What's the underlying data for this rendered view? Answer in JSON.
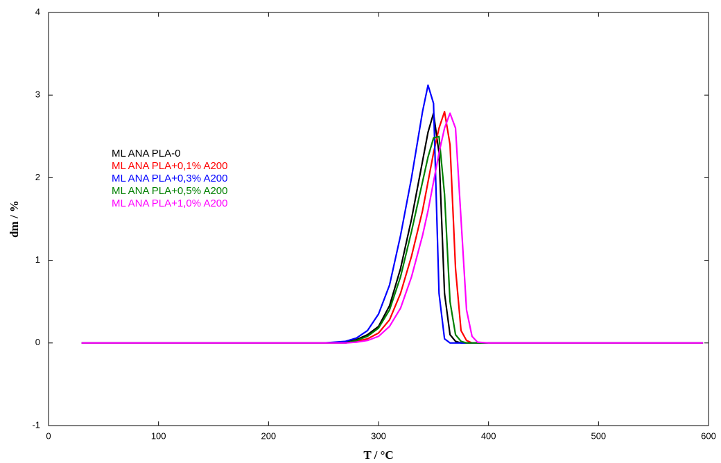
{
  "chart_data": {
    "type": "line",
    "xlabel": "T / °C",
    "ylabel": "dm / %",
    "x": [
      30,
      100,
      200,
      250,
      270,
      280,
      290,
      300,
      310,
      320,
      330,
      340,
      345,
      350,
      355,
      360,
      365,
      370,
      375,
      380,
      385,
      390,
      400,
      500,
      595
    ],
    "series": [
      {
        "name": "ML ANA PLA-0",
        "color": "#000000",
        "values": [
          0,
          0,
          0,
          0,
          0.01,
          0.04,
          0.1,
          0.2,
          0.45,
          0.9,
          1.5,
          2.2,
          2.55,
          2.78,
          2.3,
          0.6,
          0.1,
          0.02,
          0,
          0,
          0,
          0,
          0,
          0,
          0
        ]
      },
      {
        "name": "ML ANA PLA+0,1% A200",
        "color": "#ff0000",
        "values": [
          0,
          0,
          0,
          0,
          0,
          0.02,
          0.05,
          0.12,
          0.28,
          0.6,
          1.05,
          1.6,
          1.95,
          2.3,
          2.6,
          2.8,
          2.4,
          0.9,
          0.15,
          0.03,
          0,
          0,
          0,
          0,
          0
        ]
      },
      {
        "name": "ML ANA PLA+0,3% A200",
        "color": "#0000ff",
        "values": [
          0,
          0,
          0,
          0,
          0.02,
          0.06,
          0.15,
          0.35,
          0.7,
          1.3,
          2.0,
          2.8,
          3.12,
          2.9,
          0.6,
          0.05,
          0,
          0,
          0,
          0,
          0,
          0,
          0,
          0,
          0
        ]
      },
      {
        "name": "ML ANA PLA+0,5% A200",
        "color": "#008000",
        "values": [
          0,
          0,
          0,
          0,
          0,
          0.03,
          0.08,
          0.18,
          0.4,
          0.8,
          1.35,
          1.95,
          2.25,
          2.48,
          2.5,
          1.8,
          0.5,
          0.1,
          0.02,
          0,
          0,
          0,
          0,
          0,
          0
        ]
      },
      {
        "name": "ML ANA PLA+1,0% A200",
        "color": "#ff00ff",
        "values": [
          0,
          0,
          0,
          0,
          0,
          0.01,
          0.03,
          0.08,
          0.2,
          0.42,
          0.8,
          1.3,
          1.6,
          1.95,
          2.3,
          2.6,
          2.78,
          2.6,
          1.5,
          0.4,
          0.08,
          0.01,
          0,
          0,
          0
        ]
      }
    ],
    "xlim": [
      0,
      600
    ],
    "xticks": [
      0,
      100,
      200,
      300,
      400,
      500,
      600
    ],
    "ylim": [
      -1,
      4
    ],
    "yticks": [
      -1,
      0,
      1,
      2,
      3,
      4
    ],
    "grid": false
  }
}
